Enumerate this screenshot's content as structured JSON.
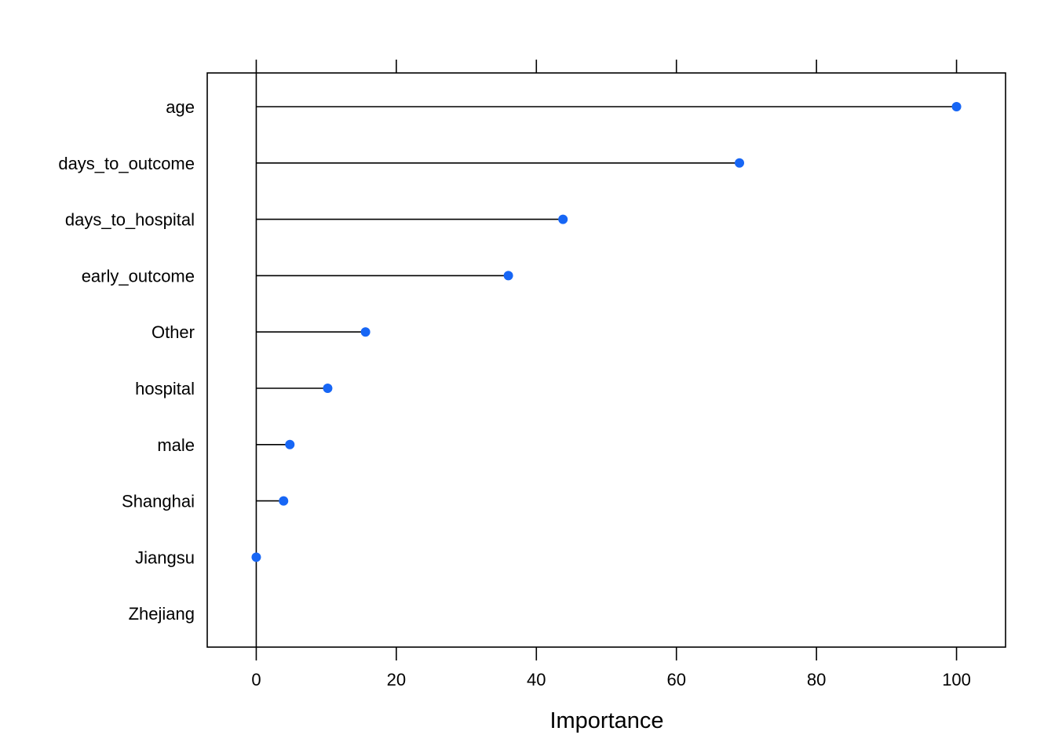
{
  "chart_data": {
    "type": "lollipop",
    "xlabel": "Importance",
    "xlim": [
      -7,
      107
    ],
    "ticks": [
      0,
      20,
      40,
      60,
      80,
      100
    ],
    "tick_labels": [
      "0",
      "20",
      "40",
      "60",
      "80",
      "100"
    ],
    "categories": [
      "age",
      "days_to_outcome",
      "days_to_hospital",
      "early_outcome",
      "Other",
      "hospital",
      "male",
      "Shanghai",
      "Jiangsu",
      "Zhejiang"
    ],
    "values": [
      100,
      69,
      43.8,
      36,
      15.6,
      10.2,
      4.8,
      3.9,
      0,
      null
    ],
    "point_color": "#1766F5",
    "line_color": "#000000"
  }
}
